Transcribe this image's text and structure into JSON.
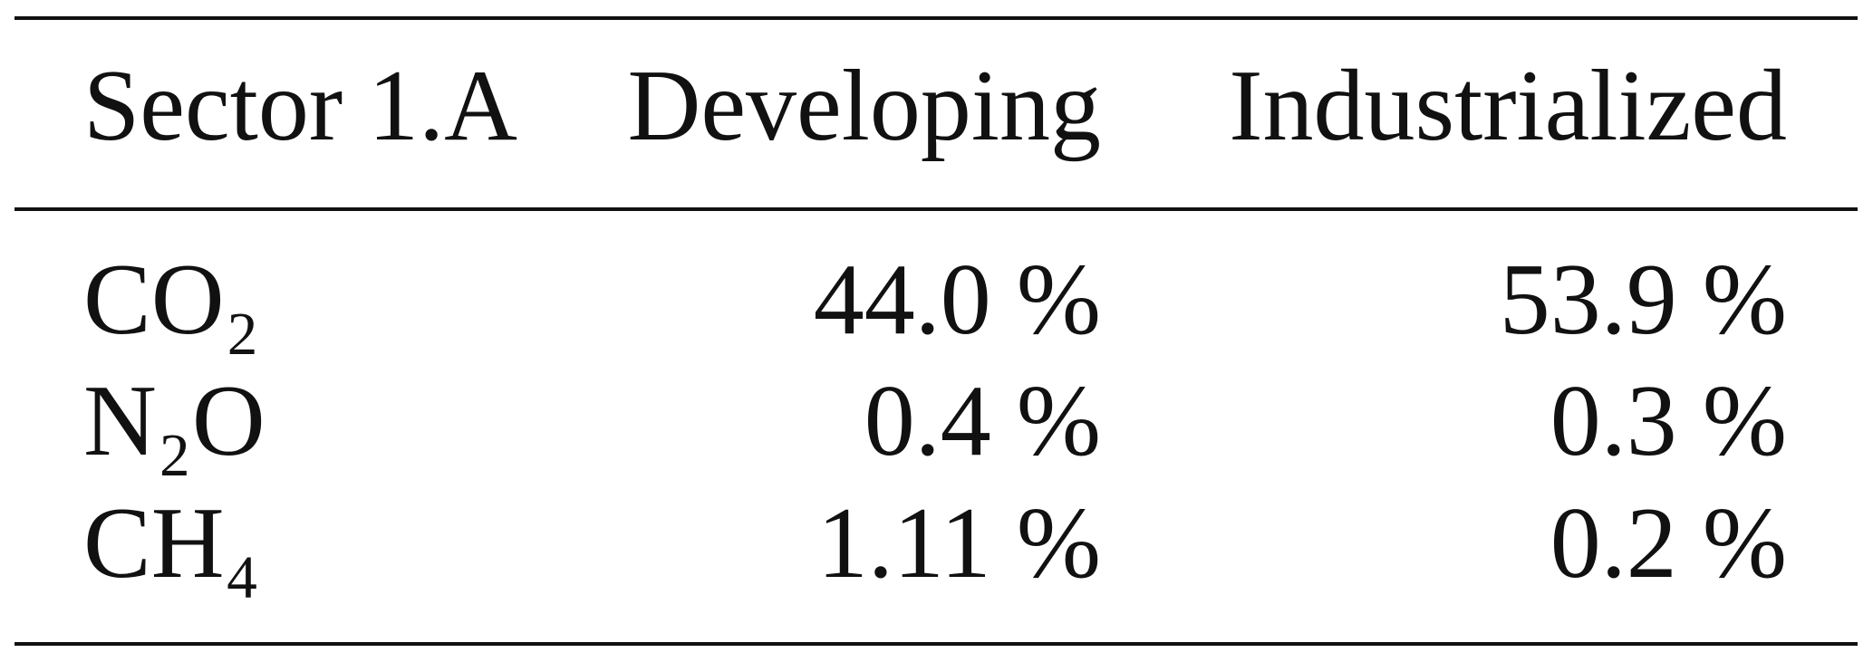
{
  "table": {
    "header": [
      "Sector 1.A",
      "Developing",
      "Industrialized"
    ],
    "rows": [
      [
        "CO₂",
        "44.0 %",
        "53.9 %"
      ],
      [
        "N₂O",
        "0.4 %",
        "0.3 %"
      ],
      [
        "CH₄",
        "1.11 %",
        "0.2 %"
      ]
    ]
  }
}
